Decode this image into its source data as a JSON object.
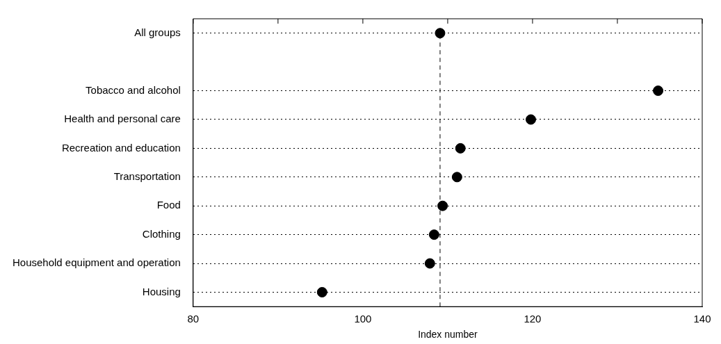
{
  "chart_data": {
    "type": "scatter",
    "orientation": "horizontal",
    "xlabel": "Index number",
    "categories": [
      "All groups",
      null,
      "Tobacco and alcohol",
      "Health and personal care",
      "Recreation and education",
      "Transportation",
      "Food",
      "Clothing",
      "Household equipment and operation",
      "Housing"
    ],
    "values": [
      109.1,
      null,
      134.8,
      119.8,
      111.5,
      111.1,
      109.4,
      108.4,
      107.9,
      95.2
    ],
    "color": "#000000",
    "marker": "circle",
    "xlim": [
      80,
      140
    ],
    "xticks": [
      80,
      {
        "value": 90,
        "label": null
      },
      100,
      {
        "value": 110,
        "label": null
      },
      120,
      {
        "value": 130,
        "label": null
      },
      140
    ],
    "grid": "y",
    "ref_lines": [
      {
        "axis": "x",
        "value": 109.1,
        "line_style": "dashed",
        "color": "#000000"
      }
    ]
  }
}
